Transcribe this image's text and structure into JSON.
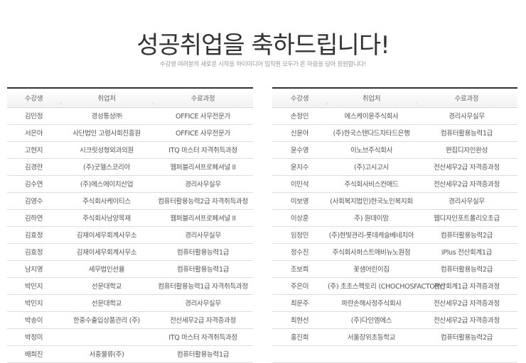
{
  "header": {
    "title": "성공취업을 축하드립니다!",
    "subtitle": "수강생 여러분의 새로운 시작을 하이미디어 임직원 모두가 온 마음을 담아 응원합니다!"
  },
  "columns": [
    "수강생",
    "취업처",
    "수료과정"
  ],
  "left_table": [
    [
      "김민정",
      "경성통상㈜",
      "OFFICE 사무전문가"
    ],
    [
      "서은아",
      "사단법인 고령사회진흥원",
      "OFFICE 사무전문가"
    ],
    [
      "고현지",
      "시크릿성형외과의원",
      "ITQ 마스터 자격취득과정"
    ],
    [
      "김경란",
      "(주)굿헬스코리아",
      "웹퍼블리셔프로페셔널 II"
    ],
    [
      "김수연",
      "(주)에스에이치산업",
      "경리사무실무"
    ],
    [
      "김영수",
      "주식회사케이티스",
      "컴퓨터활용능력2급 자격취득과정"
    ],
    [
      "김하연",
      "주식회사남양목재",
      "웹퍼블리셔프로페셔널 II"
    ],
    [
      "김효정",
      "김재이세무회계사무소",
      "경리사무실무"
    ],
    [
      "김효정",
      "김재이세무회계사무소",
      "컴퓨터활용능력1급"
    ],
    [
      "남지영",
      "세무법인선율",
      "컴퓨터활용능력1급"
    ],
    [
      "박민지",
      "선문대학교",
      "컴퓨터활용능력1급 자격취득과정"
    ],
    [
      "박민지",
      "선문대학교",
      "경리사무실무"
    ],
    [
      "박송이",
      "한중수출입상품관리 (주)",
      "전산세무2급 자격증과정"
    ],
    [
      "박정미",
      "",
      "ITQ 마스터 자격취득과정"
    ],
    [
      "배희진",
      "서중물류(주)",
      "컴퓨터활용능력1급"
    ]
  ],
  "right_table": [
    [
      "손정인",
      "에스케이윤주식회사",
      "경리사무실무"
    ],
    [
      "신윤아",
      "(주)한국스탠다드차타드은행",
      "컴퓨터활용능력1급"
    ],
    [
      "윤수영",
      "이노브주식회사",
      "편집디자인완성"
    ],
    [
      "윤지수",
      "(주)고시고시",
      "전산세무2급 자격증과정"
    ],
    [
      "이민석",
      "주식회사비스컨애드",
      "전산세무2급 자격증과정"
    ],
    [
      "이보영",
      "(사회복지법인)한국노인복지회",
      "경리사무실무"
    ],
    [
      "이상훈",
      "주) 원데이맘",
      "웹디자인포트폴리오초급"
    ],
    [
      "임정민",
      "(주)한빛관리-롯데캐슬베네치아",
      "컴퓨터활용능력2급"
    ],
    [
      "정수진",
      "주식회사퍼스트애비뉴노원점",
      "iPlus 전산회계1급"
    ],
    [
      "조보희",
      "꽃샘어린이집",
      "컴퓨터활용능력2급"
    ],
    [
      "주은미",
      "(주) 초초스팩토리 (CHOCHOSFACTORY)",
      "전산회계1급 자격증과정"
    ],
    [
      "최문주",
      "파란손해사정주식회사",
      "전산세무2급 자격증과정"
    ],
    [
      "최현선",
      "(주)다인엠에스",
      "전산세무2급 자격증과정"
    ],
    [
      "홍진희",
      "서울장위초등학교",
      "컴퓨터활용능력2급"
    ],
    [
      "",
      "",
      ""
    ]
  ]
}
